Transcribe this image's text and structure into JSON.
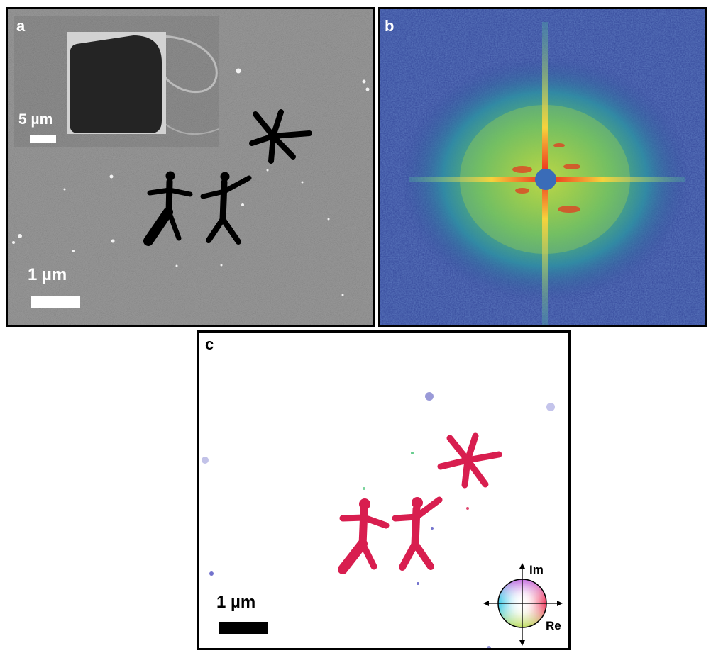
{
  "panels": {
    "a": {
      "label": "a",
      "inset_scale": "5 µm",
      "scale": "1 µm"
    },
    "b": {
      "label": "b"
    },
    "c": {
      "label": "c",
      "scale": "1 µm",
      "legend": {
        "im": "Im",
        "re": "Re"
      }
    }
  },
  "colors": {
    "sem_background": "#8c8c8c",
    "fft_background": "#34479a",
    "reconstruction_shape": "#d81e4f"
  }
}
